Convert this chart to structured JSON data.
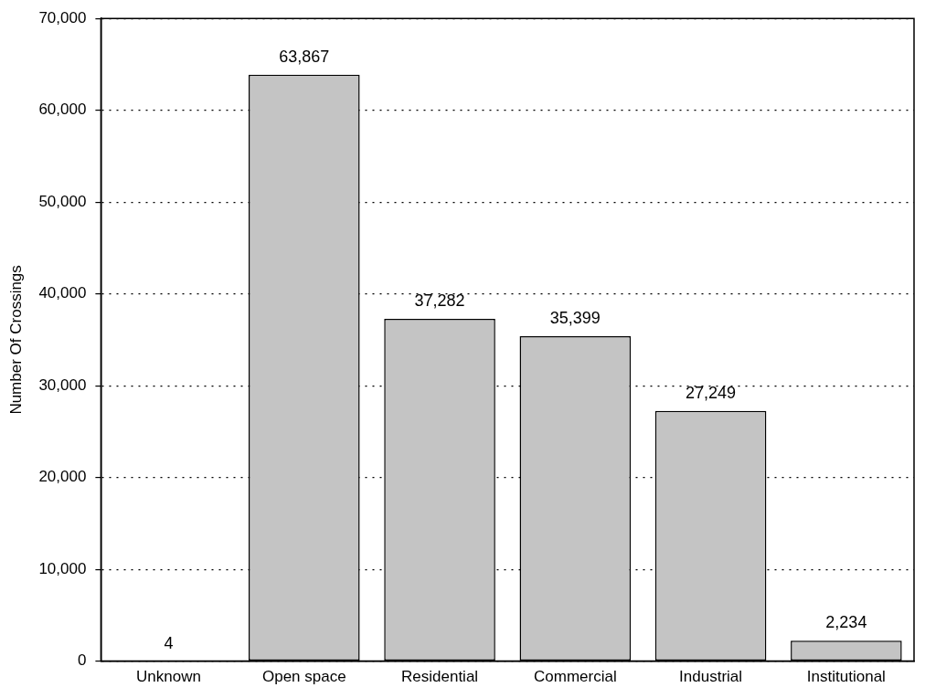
{
  "chart_data": {
    "type": "bar",
    "ylabel": "Number Of Crossings",
    "categories": [
      "Unknown",
      "Open space",
      "Residential",
      "Commercial",
      "Industrial",
      "Institutional"
    ],
    "values": [
      4,
      63867,
      37282,
      35399,
      27249,
      2234
    ],
    "color": "#c4c4c4",
    "value_labels": [
      "4",
      "63,867",
      "37,282",
      "35,399",
      "27,249",
      "2,234"
    ],
    "ylim": [
      0,
      70000
    ],
    "yticks": [
      0,
      {
        "value": 10000,
        "label": "10,000"
      },
      {
        "value": 20000,
        "label": "20,000"
      },
      {
        "value": 30000,
        "label": "30,000"
      },
      {
        "value": 40000,
        "label": "40,000"
      },
      {
        "value": 50000,
        "label": "50,000"
      },
      {
        "value": 60000,
        "label": "60,000"
      },
      {
        "value": 70000,
        "label": "70,000"
      }
    ],
    "grid": "y"
  }
}
